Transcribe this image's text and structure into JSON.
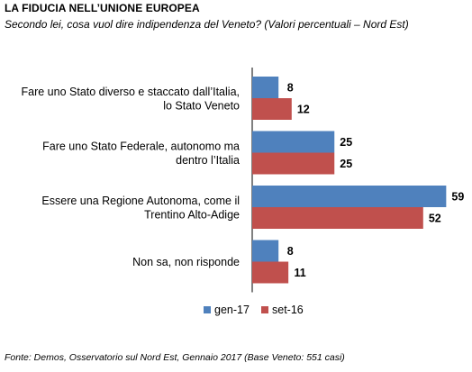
{
  "header": {
    "title": "LA FIDUCIA NELL’UNIONE EUROPEA",
    "subtitle": "Secondo lei, cosa vuol dire indipendenza del Veneto? (Valori percentuali – Nord Est)"
  },
  "footer": {
    "source": "Fonte: Demos, Osservatorio sul Nord Est, Gennaio 2017 (Base Veneto: 551 casi)"
  },
  "colors": {
    "gen17": "#4F81BD",
    "set16": "#C0504D",
    "text": "#000000"
  },
  "chart_data": {
    "type": "bar",
    "orientation": "horizontal",
    "title": "",
    "xlabel": "",
    "ylabel": "",
    "xlim": [
      0,
      60
    ],
    "grid": false,
    "legend_position": "bottom",
    "categories": [
      [
        "Fare uno Stato diverso e staccato dall’Italia,",
        "lo Stato Veneto"
      ],
      [
        "Fare uno Stato Federale, autonomo ma",
        "dentro l’Italia"
      ],
      [
        "Essere una Regione Autonoma, come il",
        "Trentino Alto-Adige"
      ],
      [
        "Non sa, non risponde"
      ]
    ],
    "series": [
      {
        "name": "gen-17",
        "values": [
          8,
          25,
          59,
          8
        ]
      },
      {
        "name": "set-16",
        "values": [
          12,
          25,
          52,
          11
        ]
      }
    ]
  }
}
